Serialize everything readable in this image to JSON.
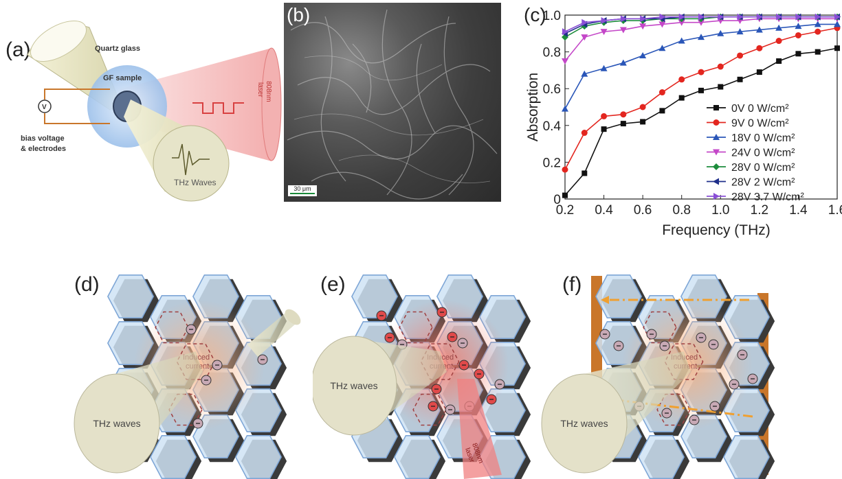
{
  "panels": {
    "a": {
      "label": "(a)",
      "texts": {
        "quartz": "Quartz glass",
        "sample": "GF sample",
        "voltmeter": "V",
        "bias": "bias voltage",
        "electrodes": "& electrodes",
        "laser_line1": "808nm",
        "laser_line2": "laser",
        "thz": "THz Waves"
      }
    },
    "b": {
      "label": "(b)",
      "scale_bar": "30 μm"
    },
    "c": {
      "label": "(c)"
    },
    "d": {
      "label": "(d)",
      "thz": "THz waves",
      "induced_line1": "Induced",
      "induced_line2": "current"
    },
    "e": {
      "label": "(e)",
      "thz": "THz waves",
      "induced_line1": "Induced",
      "induced_line2": "current",
      "laser_line1": "808nm",
      "laser_line2": "laser"
    },
    "f": {
      "label": "(f)",
      "thz": "THz waves",
      "induced_line1": "Induced",
      "induced_line2": "current"
    }
  },
  "colors": {
    "hexagon_fill": "#cfe3f5",
    "hexagon_edge": "#7ea6d6",
    "electrode": "#c9762a",
    "laser": "#f08080",
    "thz_beam": "#cfcfae"
  },
  "chart_data": {
    "type": "line",
    "xlabel": "Frequency (THz)",
    "ylabel": "Absorption",
    "xlim": [
      0.2,
      1.6
    ],
    "ylim": [
      0,
      1.0
    ],
    "xticks": [
      "0.2",
      "0.4",
      "0.6",
      "0.8",
      "1.0",
      "1.2",
      "1.4",
      "1.6"
    ],
    "yticks": [
      "0",
      "0.2",
      "0.4",
      "0.6",
      "0.8",
      "1.0"
    ],
    "grid": false,
    "legend": "bottom-right",
    "x": [
      0.2,
      0.3,
      0.4,
      0.5,
      0.6,
      0.7,
      0.8,
      0.9,
      1.0,
      1.1,
      1.2,
      1.3,
      1.4,
      1.5,
      1.6
    ],
    "series": [
      {
        "name": "0V   0 W/cm²",
        "color": "#111111",
        "marker": "square",
        "values": [
          0.02,
          0.14,
          0.38,
          0.41,
          0.42,
          0.48,
          0.55,
          0.59,
          0.61,
          0.65,
          0.69,
          0.75,
          0.79,
          0.8,
          0.82
        ]
      },
      {
        "name": "9V   0 W/cm²",
        "color": "#e3261f",
        "marker": "circle",
        "values": [
          0.16,
          0.36,
          0.45,
          0.46,
          0.5,
          0.58,
          0.65,
          0.69,
          0.72,
          0.78,
          0.82,
          0.86,
          0.89,
          0.91,
          0.93
        ]
      },
      {
        "name": "18V 0 W/cm²",
        "color": "#2a56b8",
        "marker": "triangle-up",
        "values": [
          0.49,
          0.68,
          0.71,
          0.74,
          0.78,
          0.82,
          0.86,
          0.88,
          0.9,
          0.91,
          0.92,
          0.93,
          0.94,
          0.95,
          0.95
        ]
      },
      {
        "name": "24V 0 W/cm²",
        "color": "#c447c8",
        "marker": "triangle-down",
        "values": [
          0.75,
          0.88,
          0.91,
          0.92,
          0.94,
          0.95,
          0.96,
          0.96,
          0.97,
          0.97,
          0.98,
          0.98,
          0.98,
          0.98,
          0.98
        ]
      },
      {
        "name": "28V 0 W/cm²",
        "color": "#1c8c3b",
        "marker": "diamond",
        "values": [
          0.88,
          0.94,
          0.96,
          0.97,
          0.97,
          0.98,
          0.98,
          0.98,
          0.99,
          0.99,
          0.99,
          0.99,
          0.99,
          0.99,
          0.99
        ]
      },
      {
        "name": "28V 2 W/cm²",
        "color": "#1f2f8a",
        "marker": "triangle-left",
        "values": [
          0.9,
          0.95,
          0.97,
          0.98,
          0.98,
          0.98,
          0.99,
          0.99,
          0.99,
          0.99,
          0.99,
          0.99,
          0.99,
          0.99,
          0.99
        ]
      },
      {
        "name": "28V 3.7 W/cm²",
        "color": "#8a4fd6",
        "marker": "triangle-right",
        "values": [
          0.91,
          0.96,
          0.97,
          0.98,
          0.98,
          0.99,
          0.99,
          0.99,
          0.99,
          0.99,
          0.99,
          0.99,
          0.99,
          0.99,
          0.99
        ]
      }
    ]
  }
}
